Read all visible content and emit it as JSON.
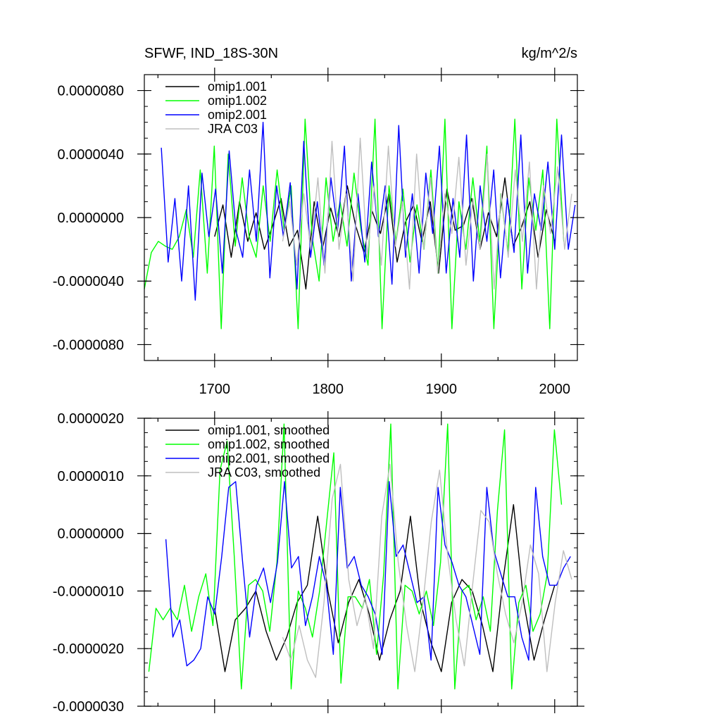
{
  "chart_data": [
    {
      "type": "line",
      "title": "SFWF, IND_18S-30N",
      "units": "kg/m^2/s",
      "xlim": [
        1638,
        2020
      ],
      "ylim": [
        -9e-06,
        9e-06
      ],
      "x_ticks": [
        1700,
        1800,
        1900,
        2000
      ],
      "x_tick_labels": [
        "1700",
        "1800",
        "1900",
        "2000"
      ],
      "y_ticks": [
        8e-06,
        4e-06,
        0.0,
        -4e-06,
        -8e-06
      ],
      "y_tick_labels": [
        "0.0000080",
        "0.0000040",
        "0.0000000",
        "-0.0000040",
        "-0.0000080"
      ],
      "legend_position": "top-left",
      "series": [
        {
          "name": "omip1.001",
          "color": "#000000",
          "x_range": [
            1700,
            2000
          ],
          "y": [
            -1.2e-06,
            8e-07,
            -2.5e-06,
            1e-06,
            -1.5e-06,
            3e-07,
            -2e-06,
            -5e-07,
            1.2e-06,
            -1.8e-06,
            -8e-07,
            -4.5e-06,
            1e-06,
            -2e-06,
            6e-07,
            -1.2e-06,
            2e-06,
            -5e-07,
            -2.2e-06,
            4e-07,
            -1e-06,
            1.5e-06,
            -2.8e-06,
            -3e-07,
            8e-07,
            -1.5e-06,
            1e-06,
            -3.5e-06,
            1.8e-06,
            -8e-07,
            -5e-07,
            1.2e-06,
            -2e-06,
            3e-07,
            -1.2e-06,
            2.5e-06,
            -1.8e-06,
            -6e-07,
            1e-06,
            -2.5e-06,
            5e-07,
            -1.5e-06
          ]
        },
        {
          "name": "omip1.002",
          "color": "#00ff00",
          "x_range": [
            1638,
            2008
          ],
          "y": [
            -4.5e-06,
            -2.2e-06,
            -1.5e-06,
            -1.8e-06,
            -2e-06,
            -1.2e-06,
            5e-07,
            -2.5e-06,
            3e-06,
            -3.5e-06,
            4.5e-06,
            -7e-06,
            4e-06,
            -1.8e-06,
            2.5e-06,
            -1.2e-06,
            -2.5e-06,
            2e-06,
            -1.5e-06,
            3e-06,
            -8e-07,
            2e-06,
            -7e-06,
            6.2e-06,
            -1.2e-06,
            -4e-06,
            2.5e-06,
            -1.5e-06,
            1e-06,
            -1.8e-06,
            2.8e-06,
            -8e-07,
            -3e-06,
            6.2e-06,
            -7e-06,
            2e-06,
            -1.5e-06,
            1.8e-06,
            -2.8e-06,
            8e-07,
            -2e-06,
            3e-06,
            -3.5e-06,
            6.2e-06,
            -7e-06,
            1e-06,
            -2e-06,
            2.5e-06,
            -1.5e-06,
            4.5e-06,
            -7e-06,
            1.5e-06,
            -2.2e-06,
            6.2e-06,
            -4.5e-06,
            2.5e-06,
            -8e-07,
            3e-06,
            -7e-06,
            6.2e-06,
            -1.5e-06
          ]
        },
        {
          "name": "omip2.001",
          "color": "#0000ff",
          "x_range": [
            1653,
            2018
          ],
          "y": [
            4.4e-06,
            -2.8e-06,
            1.2e-06,
            -4e-06,
            2e-06,
            -5.2e-06,
            2.8e-06,
            -1.2e-06,
            1.8e-06,
            -3.5e-06,
            4.2e-06,
            -8e-07,
            -2.5e-06,
            3e-06,
            -1.5e-06,
            6e-06,
            -3.8e-06,
            2e-06,
            -1.2e-06,
            2.2e-06,
            -4.5e-06,
            4.8e-06,
            -2.5e-06,
            1e-06,
            -3e-06,
            2.5e-06,
            -8e-07,
            4.5e-06,
            -4e-06,
            1.5e-06,
            -2.8e-06,
            3.5e-06,
            -1.2e-06,
            2e-06,
            -4.2e-06,
            5.8e-06,
            -2.5e-06,
            1.5e-06,
            -3.5e-06,
            2.8e-06,
            -1e-06,
            4.5e-06,
            -3.5e-06,
            1.2e-06,
            -2.5e-06,
            5.2e-06,
            -4e-06,
            2e-06,
            -1.5e-06,
            3e-06,
            -3.8e-06,
            1.2e-06,
            -2.2e-06,
            5.2e-06,
            -3.5e-06,
            1.5e-06,
            -8e-07,
            3.5e-06,
            -2e-06,
            5.2e-06,
            -2e-06,
            8e-07
          ]
        },
        {
          "name": "JRA C03",
          "color": "#bfbfbf",
          "x_range": [
            1760,
            2015
          ],
          "y": [
            -1.5e-06,
            1e-06,
            -3e-06,
            1.5e-06,
            -2e-06,
            2.5e-06,
            -3.5e-06,
            4.8e-06,
            -2e-06,
            1.5e-06,
            -4e-06,
            5e-06,
            -2.5e-06,
            2e-06,
            -3e-06,
            4.5e-06,
            -1.8e-06,
            1e-06,
            -4.5e-06,
            4e-06,
            -2e-06,
            2.5e-06,
            -3.5e-06,
            1.5e-06,
            -1e-06,
            3.8e-06,
            -3e-06,
            1.2e-06,
            -2e-06,
            4e-06,
            -4.5e-06,
            1.5e-06,
            -2.5e-06,
            3e-06,
            -1.5e-06,
            3.5e-06,
            -4.5e-06,
            2e-06,
            -1e-06,
            3.2e-06,
            -2e-06,
            1.5e-06
          ]
        }
      ]
    },
    {
      "type": "line",
      "title": "",
      "xlim": [
        1638,
        2020
      ],
      "ylim": [
        -3e-06,
        2e-06
      ],
      "x_ticks": [
        1700,
        1800,
        1900,
        2000
      ],
      "y_ticks": [
        2e-06,
        1e-06,
        0.0,
        -1e-06,
        -2e-06,
        -3e-06
      ],
      "y_tick_labels": [
        "0.0000020",
        "0.0000010",
        "0.0000000",
        "-0.0000010",
        "-0.0000020",
        "-0.0000030"
      ],
      "legend_position": "top-left",
      "series": [
        {
          "name": "omip1.001, smoothed",
          "color": "#000000",
          "x_range": [
            1700,
            2000
          ],
          "y": [
            -1.3e-06,
            -2.4e-06,
            -1.5e-06,
            -1.3e-06,
            -1e-06,
            -1.7e-06,
            -2.2e-06,
            -1.8e-06,
            -1.2e-06,
            -9e-07,
            3e-07,
            -1e-06,
            -1.9e-06,
            -1.2e-06,
            -8e-07,
            -1.4e-06,
            -2.2e-06,
            -1.5e-06,
            -1e-06,
            3e-07,
            -1.2e-06,
            -1.9e-06,
            -2.4e-06,
            -1.2e-06,
            -8e-07,
            -1e-06,
            -1.6e-06,
            -2.4e-06,
            -8e-07,
            5e-07,
            -1.2e-06,
            -2.2e-06,
            -1.5e-06,
            -9e-07
          ]
        },
        {
          "name": "omip1.002, smoothed",
          "color": "#00ff00",
          "x_range": [
            1642,
            2006
          ],
          "y": [
            -2.4e-06,
            -1.3e-06,
            -1.5e-06,
            -1.3e-06,
            -1.5e-06,
            -9e-07,
            -1.7e-06,
            -1.1e-06,
            -7e-07,
            -1.6e-06,
            1.1e-06,
            1.6e-06,
            -4e-07,
            -2.7e-06,
            -9e-07,
            -8e-07,
            -1e-06,
            -1.7e-06,
            -5e-07,
            1.9e-06,
            -2.7e-06,
            -1e-06,
            -1.3e-06,
            -1.8e-06,
            -1e-06,
            2e-07,
            1.4e-06,
            -2.6e-06,
            -1.1e-06,
            -1.1e-06,
            -1.3e-06,
            -8e-07,
            -2.1e-06,
            -7e-07,
            1.9e-06,
            -2.7e-06,
            -9e-07,
            -1e-06,
            -1.4e-06,
            -1e-06,
            -1.6e-06,
            -5e-07,
            1.9e-06,
            -2.7e-06,
            -1e-06,
            -9e-07,
            -1.5e-06,
            -1.1e-06,
            -1.7e-06,
            4e-07,
            1.8e-06,
            -2.7e-06,
            -1.2e-06,
            -9e-07,
            -1.7e-06,
            -1.4e-06,
            -7e-07,
            1.8e-06,
            5e-07
          ]
        },
        {
          "name": "omip2.001, smoothed",
          "color": "#0000ff",
          "x_range": [
            1657,
            2014
          ],
          "y": [
            -1e-07,
            -1.8e-06,
            -1.5e-06,
            -2.3e-06,
            -2.2e-06,
            -2e-06,
            -1.1e-06,
            -1.4e-06,
            -4e-07,
            8e-07,
            9e-07,
            -5e-07,
            -1.8e-06,
            -9e-07,
            -6e-07,
            -1.2e-06,
            -5e-07,
            9e-07,
            -6e-07,
            -4e-07,
            -1.6e-06,
            -1.1e-06,
            -4e-07,
            -9e-07,
            -2.1e-06,
            8e-07,
            -6e-07,
            -4e-07,
            -9e-07,
            -1.1e-06,
            -1.4e-06,
            -2.1e-06,
            9e-07,
            -4e-07,
            -2e-07,
            -7e-07,
            -1.2e-06,
            -1.1e-06,
            -2.2e-06,
            8e-07,
            -2e-07,
            -5e-07,
            -9e-07,
            -1.1e-06,
            -1.6e-06,
            -2.1e-06,
            8e-07,
            -3e-07,
            -7e-07,
            -1.1e-06,
            -1.1e-06,
            -1.8e-06,
            -2.2e-06,
            8e-07,
            -4e-07,
            -9e-07,
            -9e-07,
            -6e-07,
            -4e-07
          ]
        },
        {
          "name": "JRA C03, smoothed",
          "color": "#bfbfbf",
          "x_range": [
            1760,
            2015
          ],
          "y": [
            -1.8e-06,
            -2.2e-06,
            -1.6e-06,
            -2.2e-06,
            -2.5e-06,
            -1.2e-06,
            6e-07,
            1.2e-06,
            -8e-07,
            -1.6e-06,
            -1.1e-06,
            -2e-06,
            3e-07,
            1.2e-06,
            -5e-07,
            -1.6e-06,
            -2.4e-06,
            -1.2e-06,
            2e-07,
            1.1e-06,
            -4e-07,
            -1.5e-06,
            -2.3e-06,
            -9e-07,
            4e-07,
            2e-07,
            -7e-07,
            -1.4e-06,
            -1.9e-06,
            -1.2e-06,
            -2e-07,
            -7e-07,
            -2.4e-06,
            -1.2e-06,
            -3e-07,
            -8e-07
          ]
        }
      ]
    }
  ]
}
